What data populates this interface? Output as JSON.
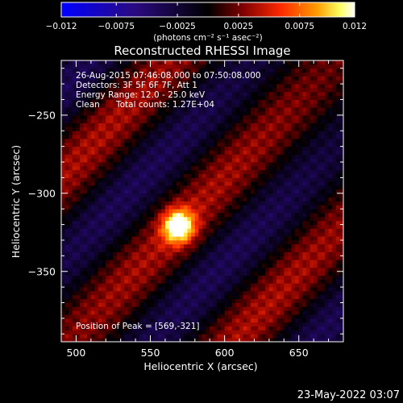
{
  "chart_data": {
    "type": "heatmap",
    "title": "Reconstructed RHESSI Image",
    "xlabel": "Heliocentric X (arcsec)",
    "ylabel": "Heliocentric Y (arcsec)",
    "xlim": [
      490,
      680
    ],
    "ylim": [
      -395,
      -215
    ],
    "x_ticks": [
      500,
      550,
      600,
      650
    ],
    "x_tick_labels": [
      "500",
      "550",
      "600",
      "650"
    ],
    "y_ticks": [
      -250,
      -300,
      -350
    ],
    "y_tick_labels": [
      "−250",
      "−300",
      "−350"
    ],
    "colorbar": {
      "min": -0.012,
      "max": 0.012,
      "ticks": [
        -0.012,
        -0.0075,
        -0.0025,
        0.0025,
        0.0075,
        0.012
      ],
      "tick_labels": [
        "−0.012",
        "−0.0075",
        "−0.0025",
        "0.0025",
        "0.0075",
        "0.012"
      ],
      "units_label": "(photons cm⁻² s⁻¹ asec⁻²)",
      "colors": [
        "#0000ff",
        "#2a0a80",
        "#000000",
        "#800000",
        "#ff3000",
        "#ff9a00",
        "#ffff60",
        "#ffffff"
      ]
    },
    "peak": {
      "x": 569,
      "y": -321
    },
    "annotations": {
      "time_range": "26-Aug-2015 07:46:08.000 to 07:50:08.000",
      "detectors": "Detectors: 3F 5F 6F 7F, Att 1",
      "energy": "Energy Range: 12.0 - 25.0 keV",
      "clean": "Clean",
      "counts": "Total counts: 1.27E+04",
      "peak_position": "Position of Peak = [569,-321]"
    },
    "timestamp": "23-May-2022 03:07"
  }
}
